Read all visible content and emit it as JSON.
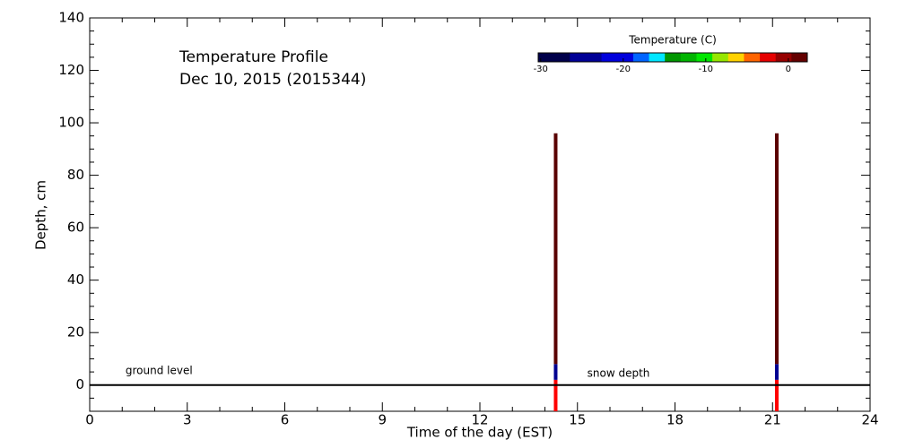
{
  "chart_data": {
    "type": "profile",
    "title": "Temperature Profile",
    "subtitle": "Dec 10, 2015 (2015344)",
    "x_label": "Time of the day (EST)",
    "y_label": "Depth, cm",
    "xlim": [
      0,
      24
    ],
    "ylim": [
      -10,
      140
    ],
    "xticks": [
      0,
      3,
      6,
      9,
      12,
      15,
      18,
      21,
      24
    ],
    "yticks": [
      0,
      20,
      40,
      60,
      80,
      100,
      120,
      140
    ],
    "xminorticks": [
      1,
      2,
      4,
      5,
      7,
      8,
      10,
      11,
      13,
      14,
      16,
      17,
      19,
      20,
      22,
      23
    ],
    "yminorticks": [
      -10,
      -5,
      5,
      10,
      15,
      25,
      30,
      35,
      45,
      50,
      55,
      65,
      70,
      75,
      85,
      90,
      95,
      105,
      110,
      115,
      125,
      130,
      135
    ],
    "ground_level": 0,
    "annotations": [
      {
        "text": "ground level",
        "x": 1.1,
        "y": 3
      },
      {
        "text": "snow depth",
        "x": 15.3,
        "y": 2
      }
    ],
    "colorbar": {
      "label": "Temperature (C)",
      "range": [
        -30.3,
        2.3
      ],
      "ticks": [
        -30,
        -20,
        -10,
        0
      ],
      "colors": [
        "#00004a",
        "#00004a",
        "#000096",
        "#000096",
        "#0000dc",
        "#0000dc",
        "#0064ff",
        "#00e6ff",
        "#009600",
        "#00b400",
        "#00e600",
        "#96e600",
        "#ffd200",
        "#ff6400",
        "#e60000",
        "#960000",
        "#640000"
      ]
    },
    "profiles": [
      {
        "x": 14.33,
        "segments": [
          {
            "from": -10,
            "to": 2,
            "color": "#ff0000"
          },
          {
            "from": 2,
            "to": 8,
            "color": "#000090"
          },
          {
            "from": 8,
            "to": 96,
            "color": "#5a0000"
          }
        ]
      },
      {
        "x": 21.13,
        "segments": [
          {
            "from": -10,
            "to": 2,
            "color": "#ff0000"
          },
          {
            "from": 2,
            "to": 8,
            "color": "#000090"
          },
          {
            "from": 8,
            "to": 96,
            "color": "#5a0000"
          }
        ]
      }
    ]
  }
}
